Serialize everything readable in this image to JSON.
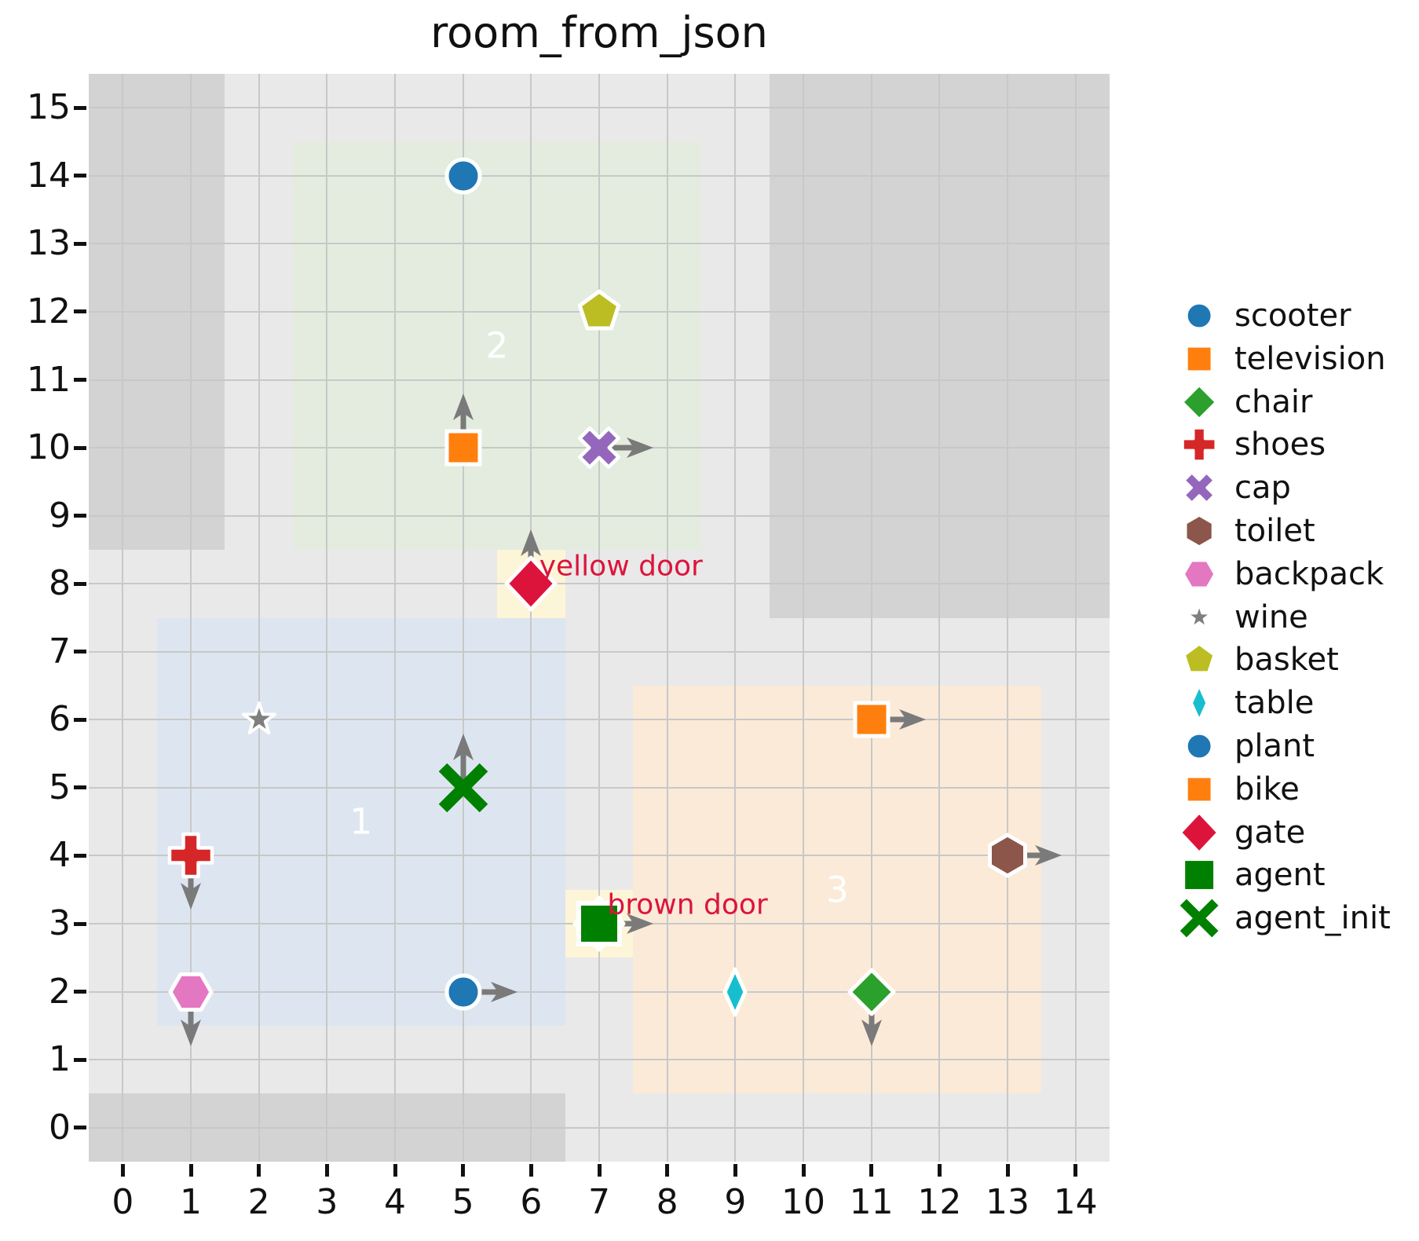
{
  "chart_data": {
    "type": "scatter",
    "title": "room_from_json",
    "xlabel": "",
    "ylabel": "",
    "xlim": [
      -0.5,
      14.5
    ],
    "ylim": [
      -0.5,
      15.5
    ],
    "xticks": [
      0,
      1,
      2,
      3,
      4,
      5,
      6,
      7,
      8,
      9,
      10,
      11,
      12,
      13,
      14
    ],
    "yticks": [
      0,
      1,
      2,
      3,
      4,
      5,
      6,
      7,
      8,
      9,
      10,
      11,
      12,
      13,
      14,
      15
    ],
    "grid": true,
    "legend_position": "center right",
    "colors": {
      "plot_bg": "#e9e9e9",
      "obstacle": "#d3d3d3",
      "grid": "#c8c8c8",
      "door_fill": "#fdf5d8",
      "door_label": "#dc143c",
      "room_label": "#ffffff",
      "arrow": "#7a7a7a",
      "text": "#111111",
      "marker_edge": "#ffffff"
    },
    "rooms": [
      {
        "label": "1",
        "x0": 0.5,
        "y0": 1.5,
        "x1": 6.5,
        "y1": 7.5,
        "fill": "#dde6f0"
      },
      {
        "label": "2",
        "x0": 2.5,
        "y0": 8.5,
        "x1": 8.5,
        "y1": 14.5,
        "fill": "#e3ecdf"
      },
      {
        "label": "3",
        "x0": 7.5,
        "y0": 0.5,
        "x1": 13.5,
        "y1": 6.5,
        "fill": "#fbead8"
      }
    ],
    "obstacles": [
      {
        "x0": -0.5,
        "y0": 8.5,
        "x1": 1.5,
        "y1": 15.5
      },
      {
        "x0": 9.5,
        "y0": 7.5,
        "x1": 14.5,
        "y1": 15.5
      },
      {
        "x0": -0.5,
        "y0": -0.5,
        "x1": 6.5,
        "y1": 0.5
      }
    ],
    "doors": [
      {
        "name": "yellow door",
        "x0": 5.5,
        "y0": 7.5,
        "x1": 6.5,
        "y1": 8.5,
        "label_x": 6.12,
        "label_y": 8.25
      },
      {
        "name": "brown door",
        "x0": 6.5,
        "y0": 2.5,
        "x1": 7.5,
        "y1": 3.5,
        "label_x": 7.12,
        "label_y": 3.27
      }
    ],
    "objects": [
      {
        "name": "scooter",
        "x": 5,
        "y": 14,
        "marker": "circle",
        "color": "#1f77b4",
        "heading": null
      },
      {
        "name": "television",
        "x": 5,
        "y": 10,
        "marker": "square",
        "color": "#ff7f0e",
        "heading": "up"
      },
      {
        "name": "basket",
        "x": 7,
        "y": 12,
        "marker": "pentagon",
        "color": "#bcbd22",
        "heading": null
      },
      {
        "name": "cap",
        "x": 7,
        "y": 10,
        "marker": "xfilled",
        "color": "#9467bd",
        "heading": "right"
      },
      {
        "name": "wine",
        "x": 2,
        "y": 6,
        "marker": "star",
        "color": "#7f7f7f",
        "heading": null
      },
      {
        "name": "shoes",
        "x": 1,
        "y": 4,
        "marker": "plus",
        "color": "#d62728",
        "heading": "down"
      },
      {
        "name": "backpack",
        "x": 1,
        "y": 2,
        "marker": "hex-flat",
        "color": "#e377c2",
        "heading": "down"
      },
      {
        "name": "plant",
        "x": 5,
        "y": 2,
        "marker": "circle",
        "color": "#1f77b4",
        "heading": "right"
      },
      {
        "name": "table",
        "x": 9,
        "y": 2,
        "marker": "thin-diamond",
        "color": "#17becf",
        "heading": null
      },
      {
        "name": "chair",
        "x": 11,
        "y": 2,
        "marker": "diamond",
        "color": "#2ca02c",
        "heading": "down"
      },
      {
        "name": "bike",
        "x": 11,
        "y": 6,
        "marker": "square",
        "color": "#ff7f0e",
        "heading": "right"
      },
      {
        "name": "toilet",
        "x": 13,
        "y": 4,
        "marker": "hex-pointy",
        "color": "#8c564b",
        "heading": "right"
      },
      {
        "name": "gate",
        "x": 6,
        "y": 8,
        "marker": "diamond-lg",
        "color": "#dc143c",
        "heading": "up"
      },
      {
        "name": "gate",
        "x": 7,
        "y": 3,
        "marker": "diamond-lg",
        "color": "#dc143c",
        "heading": null
      },
      {
        "name": "agent",
        "x": 7,
        "y": 3,
        "marker": "square-lg",
        "color": "#008000",
        "heading": "right"
      },
      {
        "name": "agent_init",
        "x": 5,
        "y": 5,
        "marker": "xstroke",
        "color": "#008000",
        "heading": "up"
      }
    ],
    "legend_entries": [
      {
        "label": "scooter",
        "marker": "circle",
        "color": "#1f77b4"
      },
      {
        "label": "television",
        "marker": "square",
        "color": "#ff7f0e"
      },
      {
        "label": "chair",
        "marker": "diamond",
        "color": "#2ca02c"
      },
      {
        "label": "shoes",
        "marker": "plus",
        "color": "#d62728"
      },
      {
        "label": "cap",
        "marker": "xfilled",
        "color": "#9467bd"
      },
      {
        "label": "toilet",
        "marker": "hex-pointy",
        "color": "#8c564b"
      },
      {
        "label": "backpack",
        "marker": "hex-flat",
        "color": "#e377c2"
      },
      {
        "label": "wine",
        "marker": "star",
        "color": "#7f7f7f"
      },
      {
        "label": "basket",
        "marker": "pentagon",
        "color": "#bcbd22"
      },
      {
        "label": "table",
        "marker": "thin-diamond",
        "color": "#17becf"
      },
      {
        "label": "plant",
        "marker": "circle",
        "color": "#1f77b4"
      },
      {
        "label": "bike",
        "marker": "square",
        "color": "#ff7f0e"
      },
      {
        "label": "gate",
        "marker": "diamond-lg",
        "color": "#dc143c"
      },
      {
        "label": "agent",
        "marker": "square-lg",
        "color": "#008000"
      },
      {
        "label": "agent_init",
        "marker": "xstroke",
        "color": "#008000"
      }
    ]
  }
}
